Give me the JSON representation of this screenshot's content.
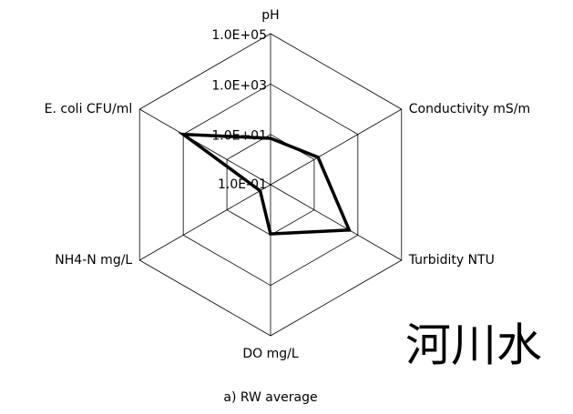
{
  "chart_data": {
    "type": "radar",
    "categories": [
      "pH",
      "Conductivity mS/m",
      "Turbidity NTU",
      "DO mg/L",
      "NH4-N mg/L",
      "E. coli CFU/ml"
    ],
    "series": [
      {
        "name": "RW average",
        "color": "#000000",
        "values": [
          7,
          15,
          400,
          9,
          0.3,
          1000
        ]
      }
    ],
    "ylim": [
      0.1,
      100000
    ],
    "yticks": [
      {
        "value": 0.1,
        "label": "1.0E-01"
      },
      {
        "value": 10,
        "label": "1.0E+01"
      },
      {
        "value": 1000,
        "label": "1.0E+03"
      },
      {
        "value": 100000,
        "label": "1.0E+05"
      }
    ],
    "log_scale": true,
    "grid": true,
    "caption": "a) RW average",
    "annotation": "河川水"
  }
}
